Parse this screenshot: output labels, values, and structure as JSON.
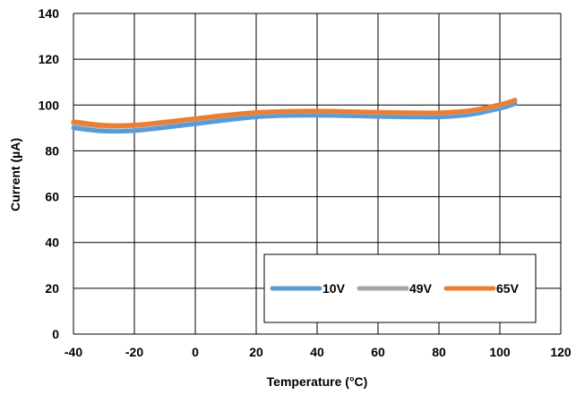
{
  "chart_data": {
    "type": "line",
    "xlabel": "Temperature (°C)",
    "ylabel": "Current (µA)",
    "xlim": [
      -40,
      120
    ],
    "ylim": [
      0,
      140
    ],
    "xticks": [
      "-40",
      "-20",
      "0",
      "20",
      "40",
      "60",
      "80",
      "100",
      "120"
    ],
    "yticks": [
      "0",
      "20",
      "40",
      "60",
      "80",
      "100",
      "120",
      "140"
    ],
    "grid": true,
    "legend": "bottom-right",
    "series": [
      {
        "name": "10V",
        "color": "#5b9bd5",
        "x": [
          -40,
          -30,
          -20,
          -10,
          0,
          10,
          20,
          30,
          40,
          50,
          60,
          70,
          80,
          90,
          100,
          105
        ],
        "y": [
          90.0,
          88.6,
          88.8,
          90.2,
          91.8,
          93.4,
          94.8,
          95.4,
          95.5,
          95.3,
          95.0,
          94.8,
          94.8,
          95.8,
          98.5,
          100.6
        ]
      },
      {
        "name": "49V",
        "color": "#a5a5a5",
        "x": [
          -40,
          -30,
          -20,
          -10,
          0,
          10,
          20,
          30,
          40,
          50,
          60,
          70,
          80,
          90,
          100,
          105
        ],
        "y": [
          92.0,
          90.7,
          90.9,
          92.2,
          93.8,
          95.3,
          96.5,
          97.0,
          97.1,
          96.9,
          96.6,
          96.4,
          96.4,
          97.3,
          99.9,
          102.0
        ]
      },
      {
        "name": "65V",
        "color": "#ed7d31",
        "x": [
          -40,
          -30,
          -20,
          -10,
          0,
          10,
          20,
          30,
          40,
          50,
          60,
          70,
          80,
          90,
          100,
          105
        ],
        "y": [
          92.8,
          91.2,
          91.3,
          92.6,
          94.1,
          95.6,
          96.8,
          97.3,
          97.4,
          97.2,
          96.9,
          96.7,
          96.7,
          97.6,
          100.2,
          102.2
        ]
      }
    ]
  }
}
